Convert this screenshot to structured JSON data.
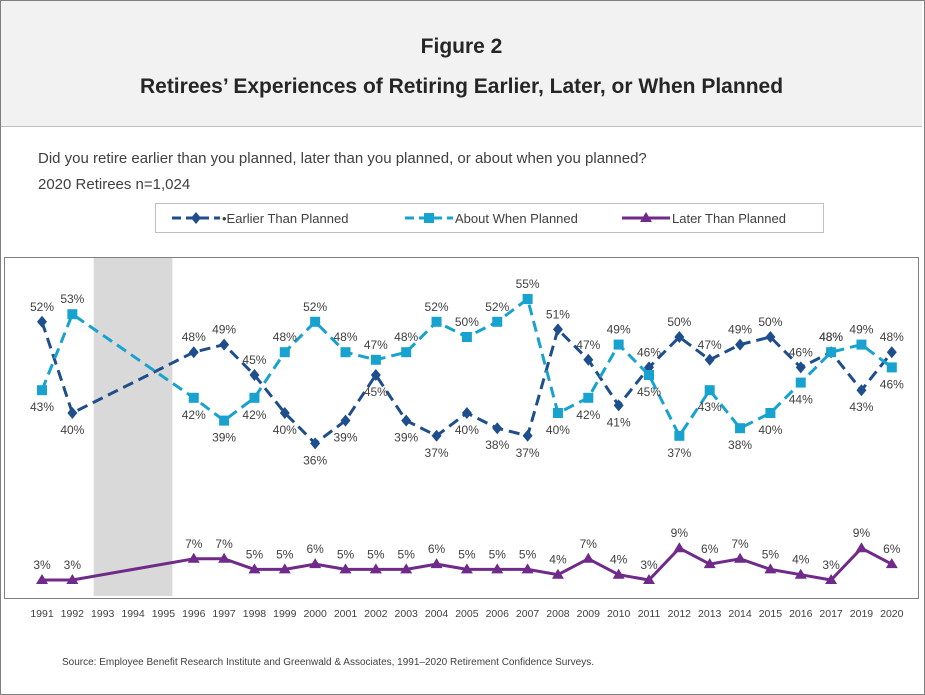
{
  "header": {
    "figure_number": "Figure 2",
    "title": "Retirees’ Experiences of Retiring Earlier, Later, or When Planned"
  },
  "question": "Did you retire earlier than you planned, later than you planned, or about when you planned?",
  "sample": "2020 Retirees n=1,024",
  "source": "Source:  Employee Benefit Research Institute and Greenwald & Associates, 1991–2020 Retirement Confidence Surveys.",
  "chart_data": {
    "type": "line",
    "x": [
      "1991",
      "1992",
      "1993",
      "1994",
      "1995",
      "1996",
      "1997",
      "1998",
      "1999",
      "2000",
      "2001",
      "2002",
      "2003",
      "2004",
      "2005",
      "2006",
      "2007",
      "2008",
      "2009",
      "2010",
      "2011",
      "2012",
      "2013",
      "2014",
      "2015",
      "2016",
      "2017",
      "2019",
      "2020"
    ],
    "shaded_years": [
      "1993",
      "1994",
      "1995"
    ],
    "legend_position": "top",
    "grid": false,
    "series": [
      {
        "name": "•Earlier Than Planned",
        "color": "#1f4e8c",
        "dash": true,
        "marker": "diamond",
        "values": [
          52,
          40,
          null,
          null,
          null,
          48,
          49,
          45,
          40,
          36,
          39,
          45,
          39,
          37,
          40,
          38,
          37,
          51,
          47,
          41,
          46,
          50,
          47,
          49,
          50,
          46,
          48,
          43,
          48
        ]
      },
      {
        "name": "About When Planned",
        "color": "#17a2cf",
        "dash": true,
        "marker": "square",
        "values": [
          43,
          53,
          null,
          null,
          null,
          42,
          39,
          42,
          48,
          52,
          48,
          47,
          48,
          52,
          50,
          52,
          55,
          40,
          42,
          49,
          45,
          37,
          43,
          38,
          40,
          44,
          48,
          49,
          46
        ]
      },
      {
        "name": "Later Than Planned",
        "color": "#6f2a8a",
        "dash": false,
        "marker": "triangle",
        "values": [
          3,
          3,
          null,
          null,
          null,
          7,
          7,
          5,
          5,
          6,
          5,
          5,
          5,
          6,
          5,
          5,
          5,
          4,
          7,
          4,
          3,
          9,
          6,
          7,
          5,
          4,
          3,
          9,
          6
        ]
      }
    ]
  }
}
